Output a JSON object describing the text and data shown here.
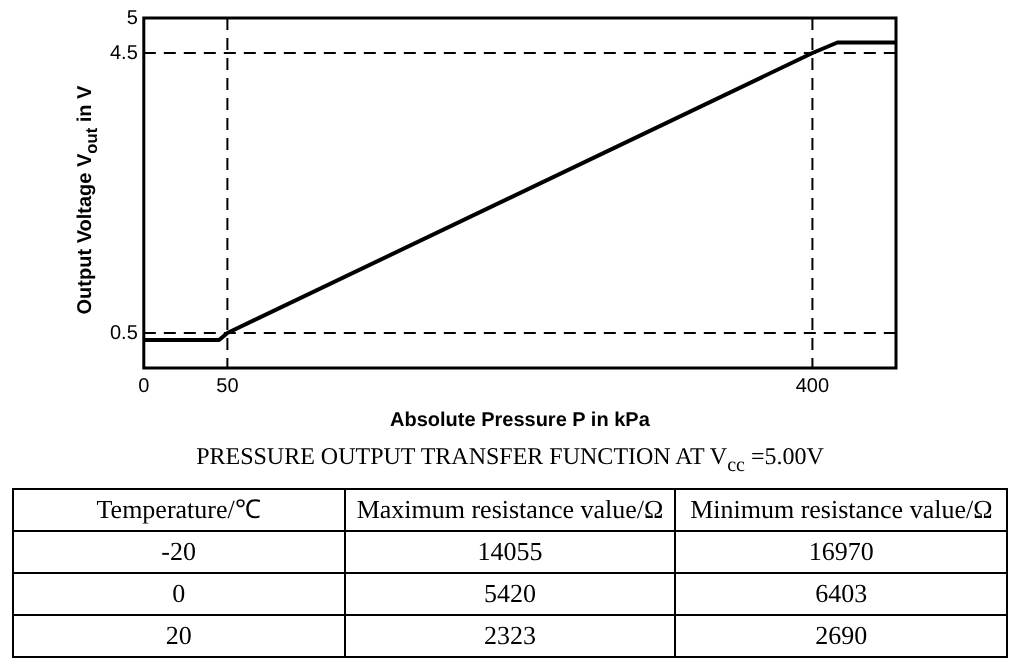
{
  "chart_data": [
    {
      "type": "line",
      "title": "PRESSURE OUTPUT TRANSFER FUNCTION AT V$_{cc}$ =5.00V",
      "xlabel": "Absolute Pressure P in kPa",
      "ylabel": "Output Voltage V$_{out}$ in V",
      "series": [
        {
          "color": "#000000",
          "x": [
            0,
            45,
            50,
            400,
            415,
            450
          ],
          "values": [
            0.4,
            0.4,
            0.5,
            4.5,
            4.65,
            4.65
          ]
        }
      ],
      "xlim": [
        0,
        450
      ],
      "xticks": [
        0,
        50,
        400
      ],
      "ylim": [
        0,
        5
      ],
      "yticks": [
        0.5,
        4.5,
        5
      ],
      "grid": false,
      "legend": false,
      "marker": "none",
      "line_style": "solid",
      "ref_lines": [
        {
          "axis": "y",
          "value": 0.5,
          "line_style": "dashed",
          "color": "#000000"
        },
        {
          "axis": "y",
          "value": 4.5,
          "line_style": "dashed",
          "color": "#000000"
        },
        {
          "axis": "x",
          "value": 50,
          "line_style": "dashed",
          "color": "#000000"
        },
        {
          "axis": "x",
          "value": 400,
          "line_style": "dashed",
          "color": "#000000"
        }
      ]
    },
    {
      "type": "other",
      "annotations": [
        "Temperature/℃",
        "Maximum resistance value/Ω",
        "Minimum resistance value/Ω",
        "-20",
        "14055",
        "16970",
        "0",
        "5420",
        "6403",
        "20",
        "2323",
        "2690"
      ]
    }
  ]
}
